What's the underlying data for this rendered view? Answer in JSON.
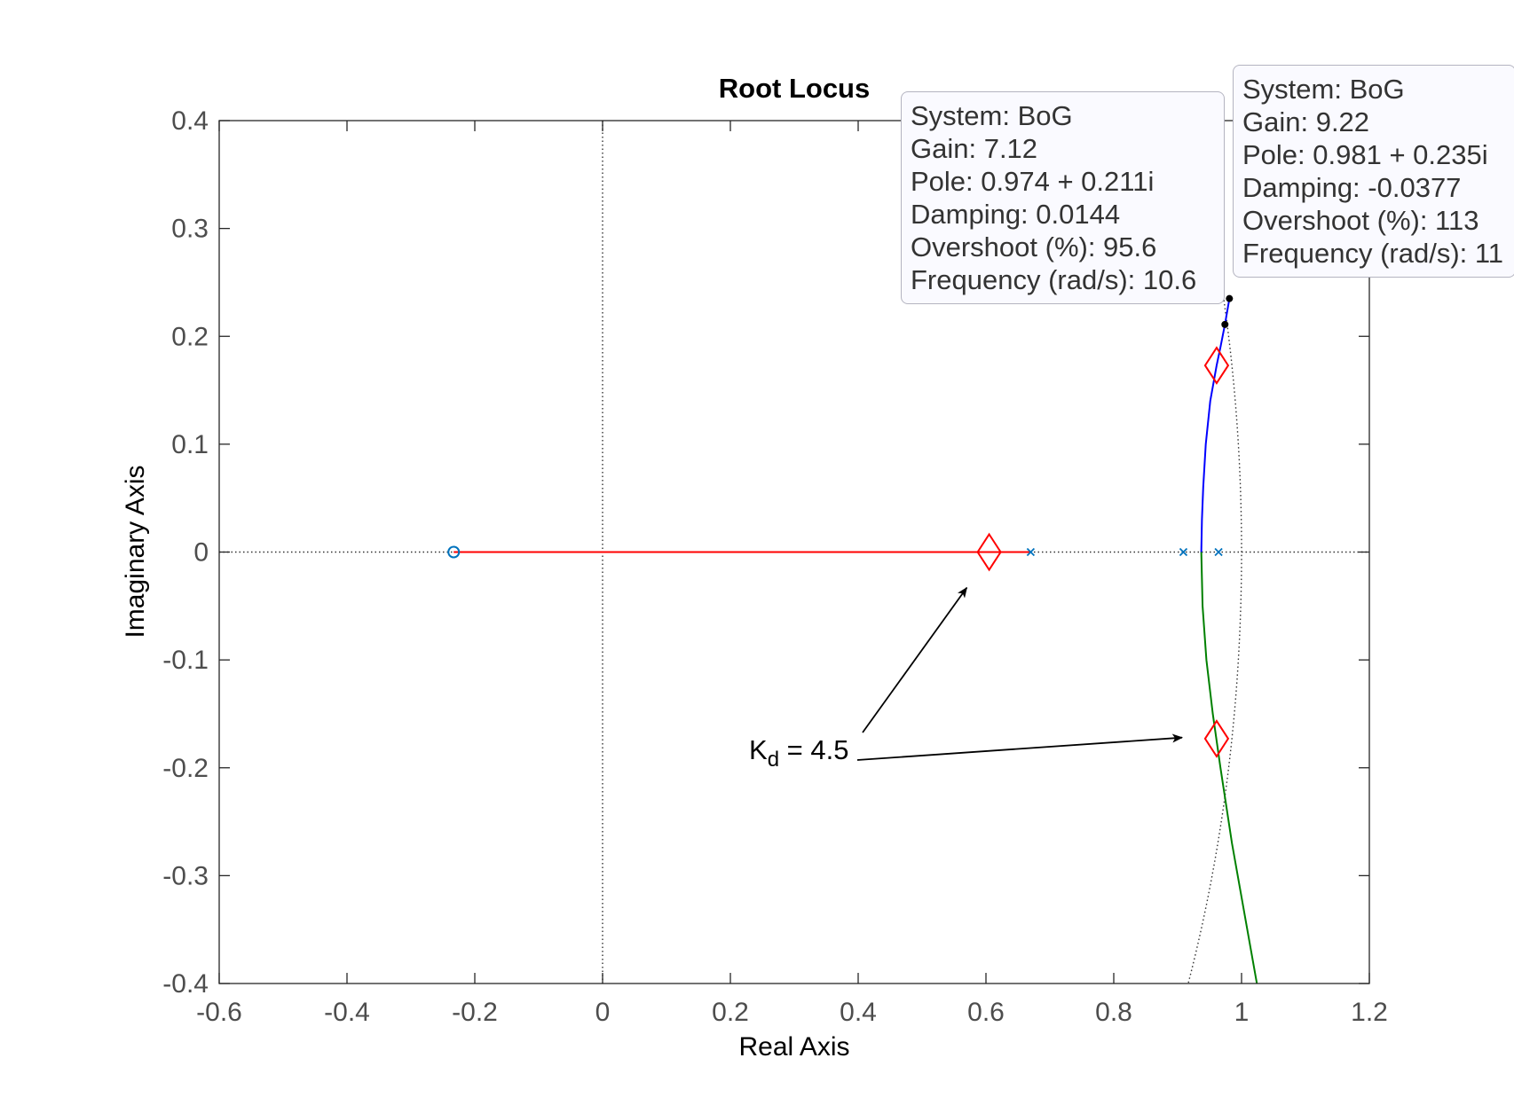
{
  "colors": {
    "axis": "#262626",
    "tick_text": "#4d4d4d",
    "grid_guide": "#333333",
    "branch_1": "#ff0000",
    "branch_2": "#0000ff",
    "branch_3": "#008000",
    "pole_zero_marker": "#0072bd",
    "design_marker": "#ff0000"
  },
  "chart_data": {
    "type": "root-locus",
    "title": "Root Locus",
    "xlabel": "Real Axis",
    "ylabel": "Imaginary Axis",
    "xlim": [
      -0.6,
      1.2
    ],
    "ylim": [
      -0.4,
      0.4
    ],
    "xticks": [
      -0.6,
      -0.4,
      -0.2,
      0,
      0.2,
      0.4,
      0.6,
      0.8,
      1,
      1.2
    ],
    "xtick_labels": [
      "-0.6",
      "-0.4",
      "-0.2",
      "0",
      "0.2",
      "0.4",
      "0.6",
      "0.8",
      "1",
      "1.2"
    ],
    "yticks": [
      -0.4,
      -0.3,
      -0.2,
      -0.1,
      0,
      0.1,
      0.2,
      0.3,
      0.4
    ],
    "ytick_labels": [
      "-0.4",
      "-0.3",
      "-0.2",
      "-0.1",
      "0",
      "0.1",
      "0.2",
      "0.3",
      "0.4"
    ],
    "grid": false,
    "unit_circle_shown": true,
    "open_loop_poles": [
      [
        0.67,
        0
      ],
      [
        0.909,
        0
      ],
      [
        0.964,
        0
      ]
    ],
    "open_loop_zeros": [
      [
        -0.233,
        0
      ]
    ],
    "branches": [
      {
        "color_key": "branch_1",
        "points": [
          [
            0.67,
            0
          ],
          [
            -0.233,
            0
          ]
        ]
      },
      {
        "color_key": "branch_2",
        "points": [
          [
            0.937,
            0
          ],
          [
            0.938,
            0.03
          ],
          [
            0.94,
            0.06
          ],
          [
            0.944,
            0.1
          ],
          [
            0.951,
            0.14
          ],
          [
            0.961,
            0.173
          ],
          [
            0.967,
            0.19
          ],
          [
            0.974,
            0.211
          ],
          [
            0.981,
            0.235
          ]
        ]
      },
      {
        "color_key": "branch_3",
        "points": [
          [
            0.937,
            0
          ],
          [
            0.939,
            -0.05
          ],
          [
            0.945,
            -0.1
          ],
          [
            0.955,
            -0.15
          ],
          [
            0.967,
            -0.2
          ],
          [
            0.985,
            -0.27
          ],
          [
            1.006,
            -0.34
          ],
          [
            1.024,
            -0.4
          ]
        ]
      }
    ],
    "design_points": [
      [
        0.605,
        0
      ],
      [
        0.961,
        0.173
      ],
      [
        0.961,
        -0.173
      ]
    ],
    "datatip_points": [
      [
        0.974,
        0.211
      ],
      [
        0.981,
        0.235
      ]
    ],
    "annotation": {
      "label_main": "K",
      "label_sub": "d",
      "label_rest": " = 4.5",
      "arrow_targets": [
        [
          0.57,
          -0.033
        ],
        [
          0.907,
          -0.172
        ]
      ]
    },
    "datatips": [
      {
        "system": "System: BoG",
        "gain": "Gain: 7.12",
        "pole": "Pole: 0.974 + 0.211i",
        "damping": "Damping: 0.0144",
        "overshoot": "Overshoot (%): 95.6",
        "frequency": "Frequency (rad/s): 10.6"
      },
      {
        "system": "System: BoG",
        "gain": "Gain: 9.22",
        "pole": "Pole: 0.981 + 0.235i",
        "damping": "Damping: -0.0377",
        "overshoot": "Overshoot (%): 113",
        "frequency": "Frequency (rad/s): 11"
      }
    ]
  }
}
